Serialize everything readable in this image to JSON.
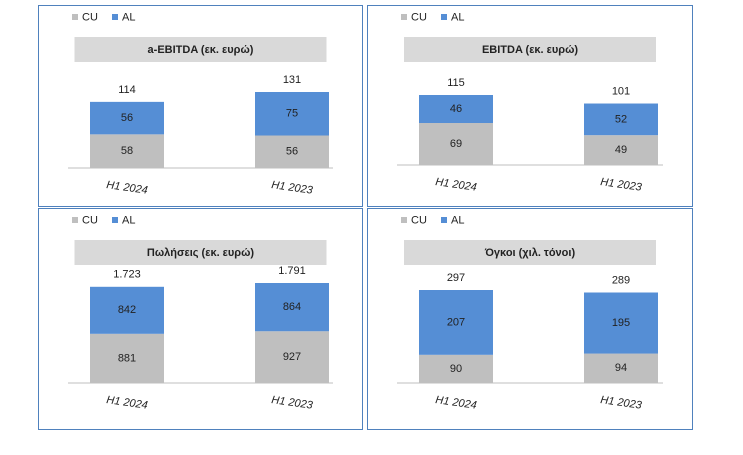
{
  "chart_data": [
    {
      "type": "bar",
      "stacked": true,
      "title": "a-EBITDA (εκ. ευρώ)",
      "categories": [
        "H1 2024",
        "H1 2023"
      ],
      "series": [
        {
          "name": "CU",
          "color": "#bfbfbf",
          "values": [
            58,
            56
          ]
        },
        {
          "name": "AL",
          "color": "#558ed5",
          "values": [
            56,
            75
          ]
        }
      ],
      "totals": [
        114,
        131
      ]
    },
    {
      "type": "bar",
      "stacked": true,
      "title": "EBITDA (εκ. ευρώ)",
      "categories": [
        "H1 2024",
        "H1 2023"
      ],
      "series": [
        {
          "name": "CU",
          "color": "#bfbfbf",
          "values": [
            69,
            49
          ]
        },
        {
          "name": "AL",
          "color": "#558ed5",
          "values": [
            46,
            52
          ]
        }
      ],
      "totals": [
        115,
        101
      ]
    },
    {
      "type": "bar",
      "stacked": true,
      "title": "Πωλήσεις (εκ. ευρώ)",
      "categories": [
        "H1 2024",
        "H1 2023"
      ],
      "series": [
        {
          "name": "CU",
          "color": "#bfbfbf",
          "values": [
            881,
            927
          ]
        },
        {
          "name": "AL",
          "color": "#558ed5",
          "values": [
            842,
            864
          ]
        }
      ],
      "totals": [
        {
          "value": 1723,
          "label": "1.723"
        },
        {
          "value": 1791,
          "label": "1.791"
        }
      ]
    },
    {
      "type": "bar",
      "stacked": true,
      "title": "Όγκοι (χιλ. τόνοι)",
      "categories": [
        "H1 2024",
        "H1 2023"
      ],
      "series": [
        {
          "name": "CU",
          "color": "#bfbfbf",
          "values": [
            90,
            94
          ]
        },
        {
          "name": "AL",
          "color": "#558ed5",
          "values": [
            207,
            195
          ]
        }
      ],
      "totals": [
        297,
        289
      ]
    }
  ]
}
